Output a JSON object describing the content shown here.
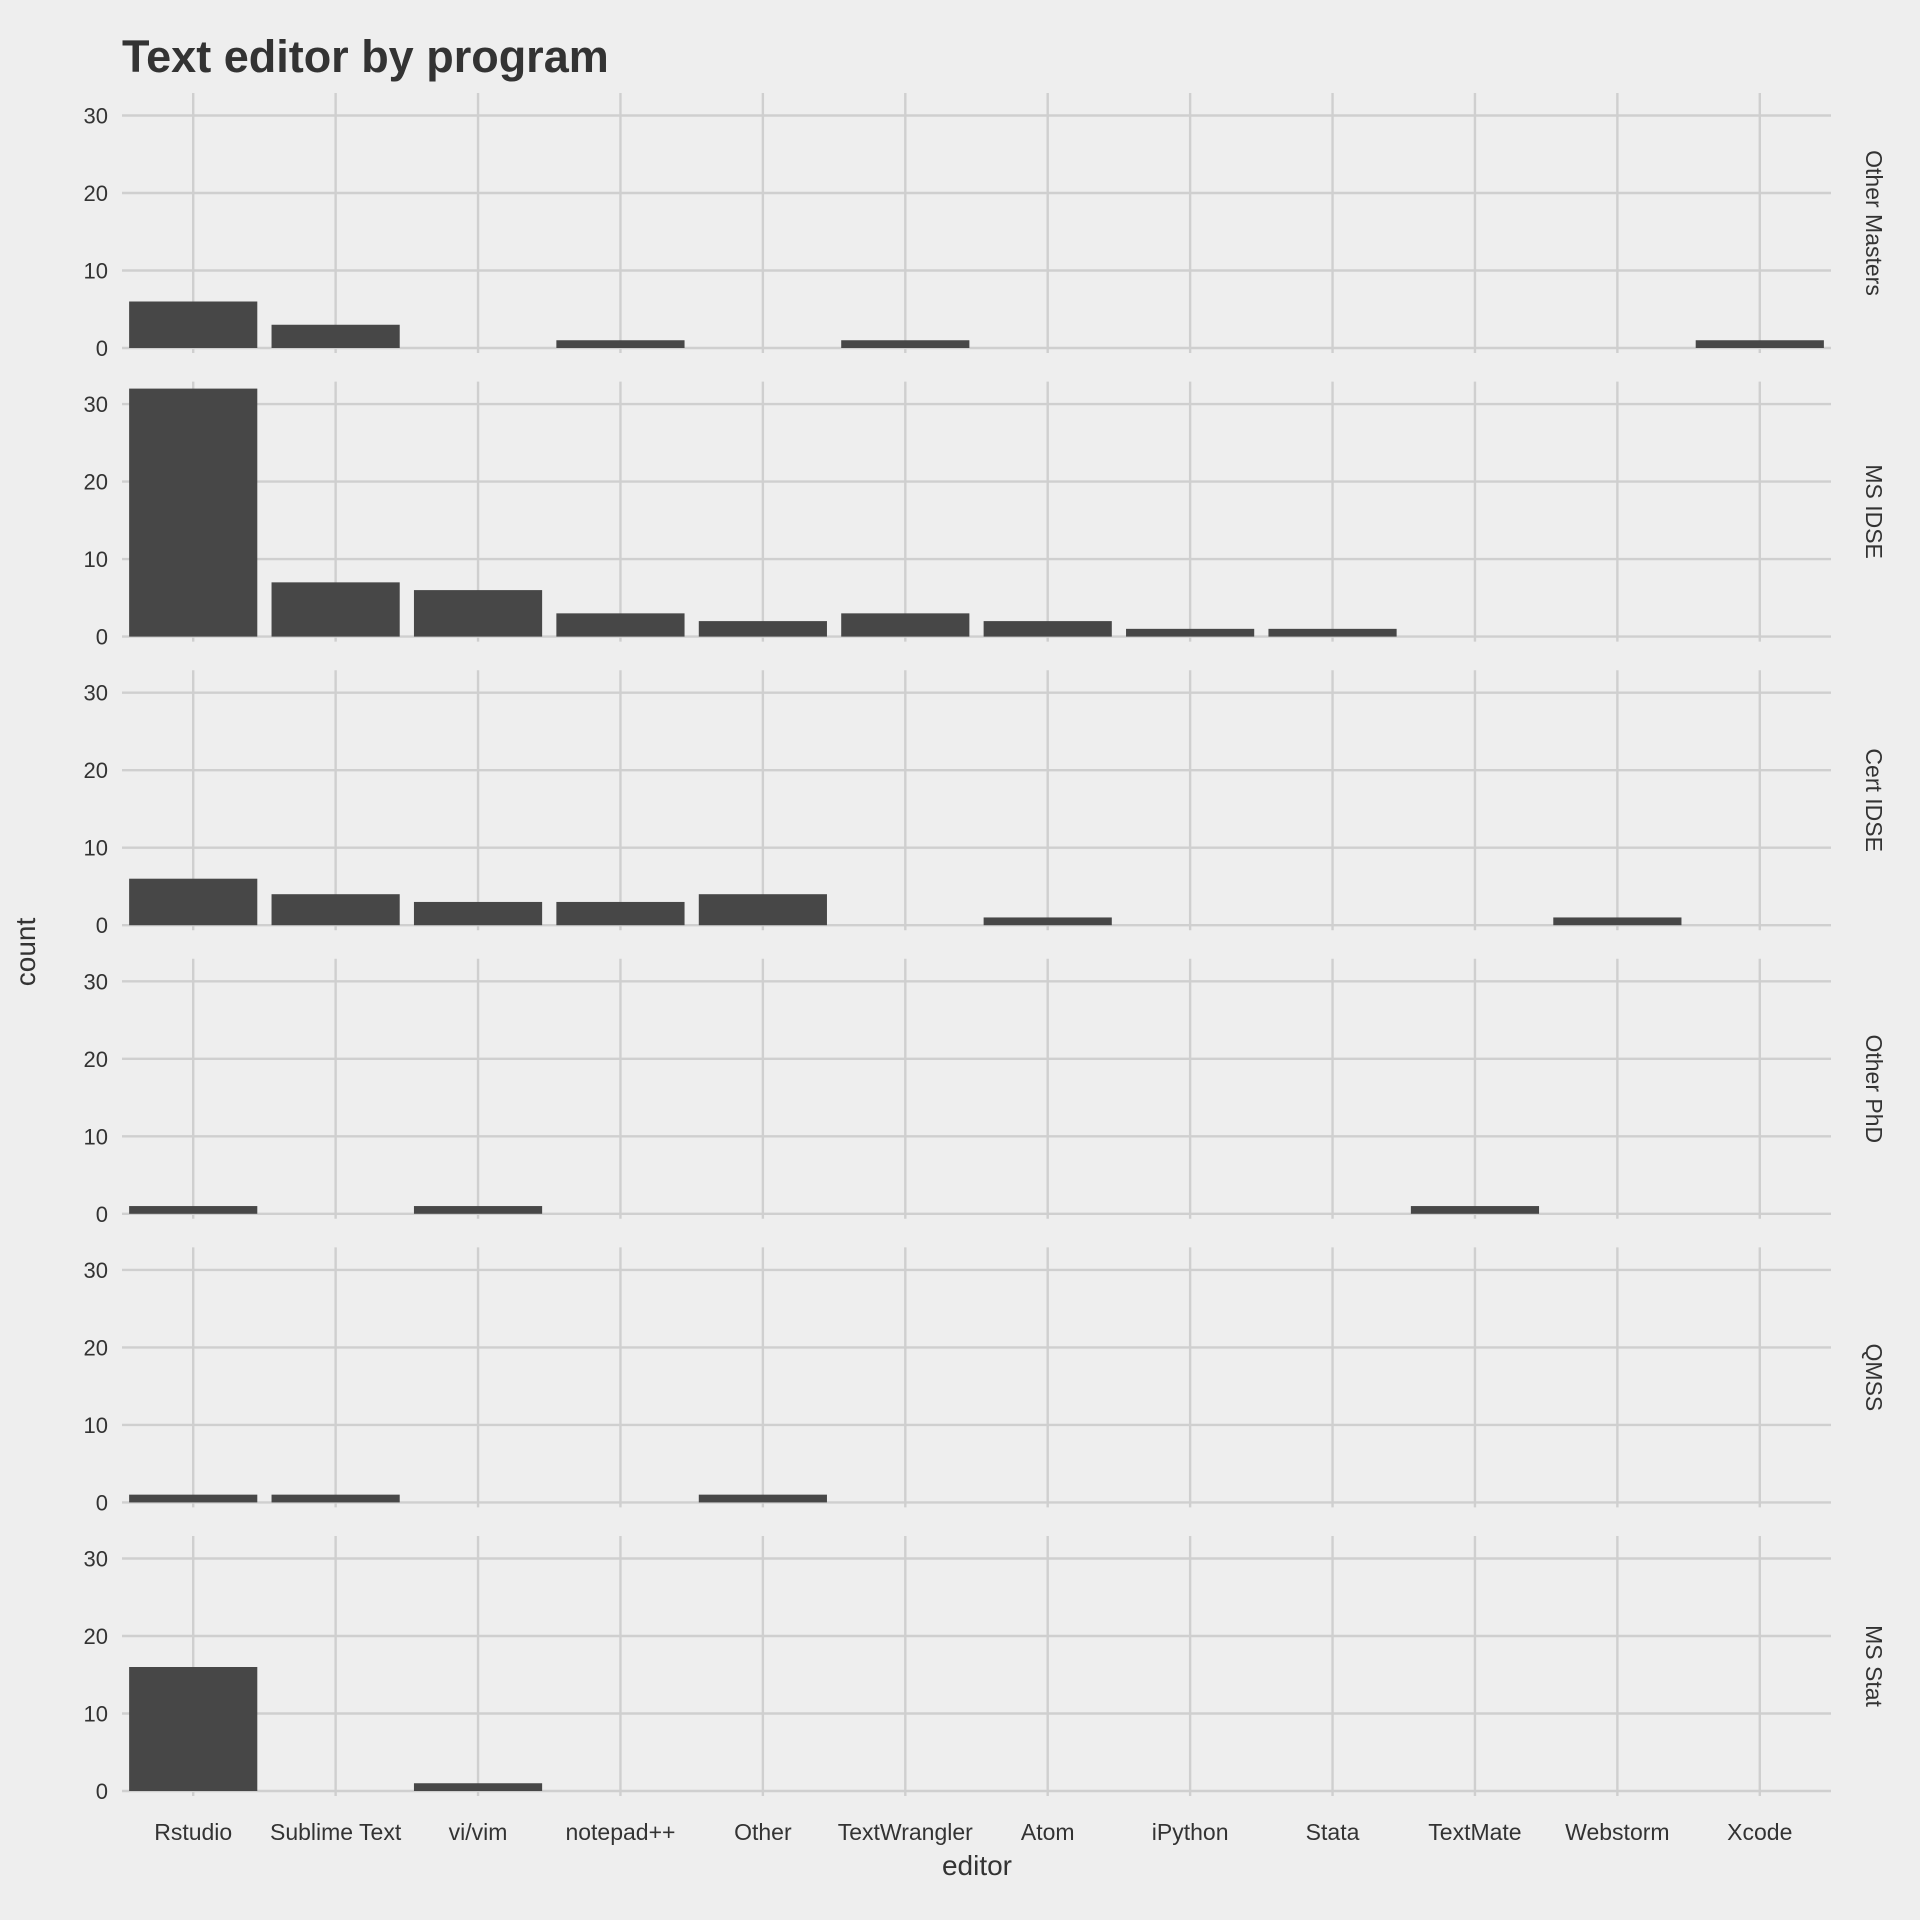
{
  "chart_data": {
    "type": "bar",
    "title": "Text editor by program",
    "xlabel": "editor",
    "ylabel": "count",
    "ylim": [
      0,
      33
    ],
    "yticks": [
      0,
      10,
      20,
      30
    ],
    "grid": true,
    "colors": {
      "background": "#eeeeee",
      "bar": "#474747",
      "grid": "#cfcfcf",
      "text": "#333333"
    },
    "categories": [
      "Rstudio",
      "Sublime Text",
      "vi/vim",
      "notepad++",
      "Other",
      "TextWrangler",
      "Atom",
      "iPython",
      "Stata",
      "TextMate",
      "Webstorm",
      "Xcode"
    ],
    "facets": [
      {
        "name": "Other Masters",
        "values": [
          6,
          3,
          0,
          1,
          0,
          1,
          0,
          0,
          0,
          0,
          0,
          1
        ]
      },
      {
        "name": "MS IDSE",
        "values": [
          32,
          7,
          6,
          3,
          2,
          3,
          2,
          1,
          1,
          0,
          0,
          0
        ]
      },
      {
        "name": "Cert IDSE",
        "values": [
          6,
          4,
          3,
          3,
          4,
          0,
          1,
          0,
          0,
          0,
          1,
          0
        ]
      },
      {
        "name": "Other PhD",
        "values": [
          1,
          0,
          1,
          0,
          0,
          0,
          0,
          0,
          0,
          1,
          0,
          0
        ]
      },
      {
        "name": "QMSS",
        "values": [
          1,
          1,
          0,
          0,
          1,
          0,
          0,
          0,
          0,
          0,
          0,
          0
        ]
      },
      {
        "name": "MS Stat",
        "values": [
          16,
          0,
          1,
          0,
          0,
          0,
          0,
          0,
          0,
          0,
          0,
          0
        ]
      }
    ]
  }
}
